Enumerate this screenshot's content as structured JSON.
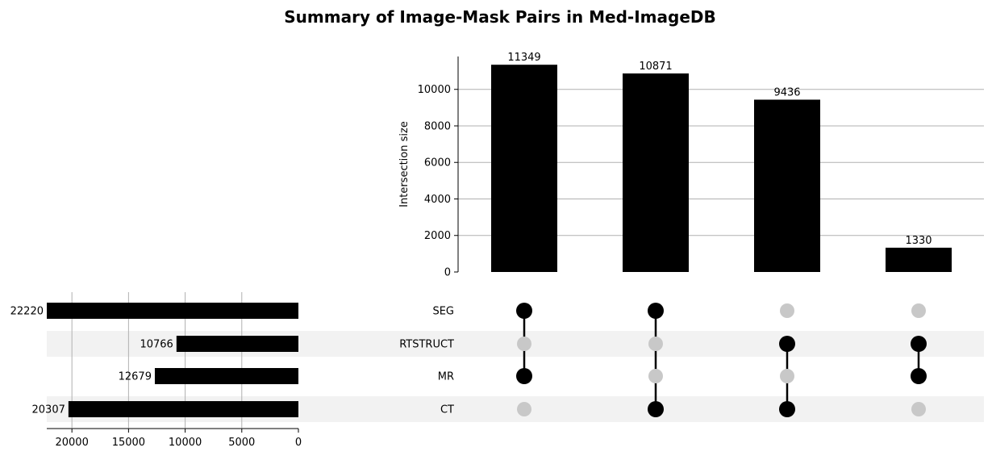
{
  "chart_data": {
    "type": "upset",
    "title": "Summary of Image-Mask Pairs in Med-ImageDB",
    "ylabel": "Intersection size",
    "ylim": [
      0,
      11800
    ],
    "yticks": [
      0,
      2000,
      4000,
      6000,
      8000,
      10000
    ],
    "sets": [
      "SEG",
      "RTSTRUCT",
      "MR",
      "CT"
    ],
    "set_sizes": [
      22220,
      10766,
      12679,
      20307
    ],
    "set_size_xlim": [
      22220,
      0
    ],
    "set_size_ticks": [
      20000,
      15000,
      10000,
      5000,
      0
    ],
    "intersections": [
      {
        "sets": [
          "SEG",
          "MR"
        ],
        "size": 11349
      },
      {
        "sets": [
          "SEG",
          "CT"
        ],
        "size": 10871
      },
      {
        "sets": [
          "RTSTRUCT",
          "CT"
        ],
        "size": 9436
      },
      {
        "sets": [
          "RTSTRUCT",
          "MR"
        ],
        "size": 1330
      }
    ],
    "grid": true
  },
  "colors": {
    "bar": "#000000",
    "dot_active": "#000000",
    "dot_inactive": "#c8c8c8",
    "stripe": "#f2f2f2",
    "grid": "#b0b0b0"
  }
}
